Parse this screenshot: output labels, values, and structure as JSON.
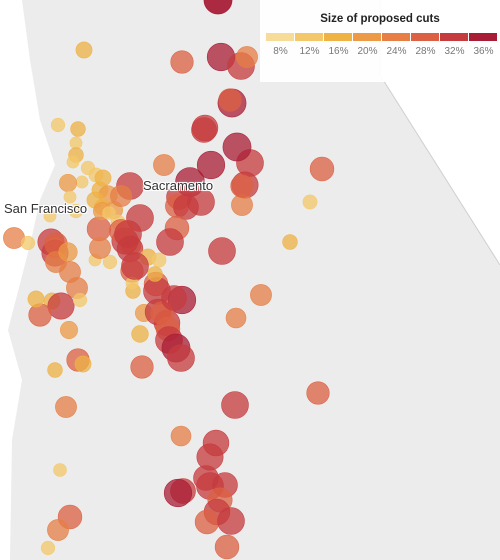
{
  "cities": {
    "san_francisco": "San Francisco",
    "sacramento": "Sacramento"
  },
  "legend": {
    "title": "Size of proposed cuts",
    "ticks": [
      "8%",
      "12%",
      "16%",
      "20%",
      "24%",
      "28%",
      "32%",
      "36%"
    ],
    "colors": [
      "#f6dc98",
      "#f3c86a",
      "#eeb245",
      "#ec9a46",
      "#e67e46",
      "#dc6043",
      "#c63b3e",
      "#a81d36"
    ]
  },
  "colors": {
    "land": "#ececec",
    "ocean": "#ffffff",
    "border": "#cfcfcf"
  },
  "sites": [
    {
      "cut": 35
    },
    {
      "cut": 16
    },
    {
      "cut": 26
    },
    {
      "cut": 34
    },
    {
      "cut": 33
    },
    {
      "cut": 24
    },
    {
      "cut": 35
    },
    {
      "cut": 30
    },
    {
      "cut": 31
    },
    {
      "cut": 12
    },
    {
      "cut": 14
    },
    {
      "cut": 10
    },
    {
      "cut": 14
    },
    {
      "cut": 10
    },
    {
      "cut": 12
    },
    {
      "cut": 13
    },
    {
      "cut": 16
    },
    {
      "cut": 10
    },
    {
      "cut": 18
    },
    {
      "cut": 16
    },
    {
      "cut": 20
    },
    {
      "cut": 16
    },
    {
      "cut": 15
    },
    {
      "cut": 18
    },
    {
      "cut": 13
    },
    {
      "cut": 10
    },
    {
      "cut": 12
    },
    {
      "cut": 24
    },
    {
      "cut": 33
    },
    {
      "cut": 36
    },
    {
      "cut": 34
    },
    {
      "cut": 33
    },
    {
      "cut": 35
    },
    {
      "cut": 32
    },
    {
      "cut": 30
    },
    {
      "cut": 27
    },
    {
      "cut": 30
    },
    {
      "cut": 33
    },
    {
      "cut": 24
    },
    {
      "cut": 33
    },
    {
      "cut": 28
    },
    {
      "cut": 22
    },
    {
      "cut": 32
    },
    {
      "cut": 27
    },
    {
      "cut": 33
    },
    {
      "cut": 31
    },
    {
      "cut": 26
    },
    {
      "cut": 16
    },
    {
      "cut": 13
    },
    {
      "cut": 28
    },
    {
      "cut": 33
    },
    {
      "cut": 18
    },
    {
      "cut": 17
    },
    {
      "cut": 14
    },
    {
      "cut": 33
    },
    {
      "cut": 22
    },
    {
      "cut": 34
    },
    {
      "cut": 31
    },
    {
      "cut": 31
    },
    {
      "cut": 26
    },
    {
      "cut": 30
    },
    {
      "cut": 28
    },
    {
      "cut": 33
    },
    {
      "cut": 35
    },
    {
      "cut": 33
    },
    {
      "cut": 26
    },
    {
      "cut": 32
    },
    {
      "cut": 22
    },
    {
      "cut": 32
    },
    {
      "cut": 26
    },
    {
      "cut": 24
    },
    {
      "cut": 20
    },
    {
      "cut": 24
    },
    {
      "cut": 24
    },
    {
      "cut": 16
    },
    {
      "cut": 32
    },
    {
      "cut": 26
    },
    {
      "cut": 18
    },
    {
      "cut": 26
    },
    {
      "cut": 16
    },
    {
      "cut": 14
    },
    {
      "cut": 24
    },
    {
      "cut": 33
    },
    {
      "cut": 22
    },
    {
      "cut": 31
    },
    {
      "cut": 32
    },
    {
      "cut": 30
    },
    {
      "cut": 33
    },
    {
      "cut": 30
    },
    {
      "cut": 29
    },
    {
      "cut": 31
    },
    {
      "cut": 28
    },
    {
      "cut": 33
    },
    {
      "cut": 30
    },
    {
      "cut": 34
    },
    {
      "cut": 28
    },
    {
      "cut": 26
    },
    {
      "cut": 28
    },
    {
      "cut": 13
    },
    {
      "cut": 14
    },
    {
      "cut": 24
    },
    {
      "cut": 26
    },
    {
      "cut": 11
    },
    {
      "cut": 12
    },
    {
      "cut": 28
    },
    {
      "cut": 24
    },
    {
      "cut": 12
    },
    {
      "cut": 10
    },
    {
      "cut": 28
    },
    {
      "cut": 24
    },
    {
      "cut": 18
    },
    {
      "cut": 11
    },
    {
      "cut": 10
    },
    {
      "cut": 12
    },
    {
      "cut": 24
    },
    {
      "cut": 16
    },
    {
      "cut": 12
    },
    {
      "cut": 14
    },
    {
      "cut": 10
    },
    {
      "cut": 33
    },
    {
      "cut": 33
    },
    {
      "cut": 26
    },
    {
      "cut": 24
    },
    {
      "cut": 34
    }
  ]
}
